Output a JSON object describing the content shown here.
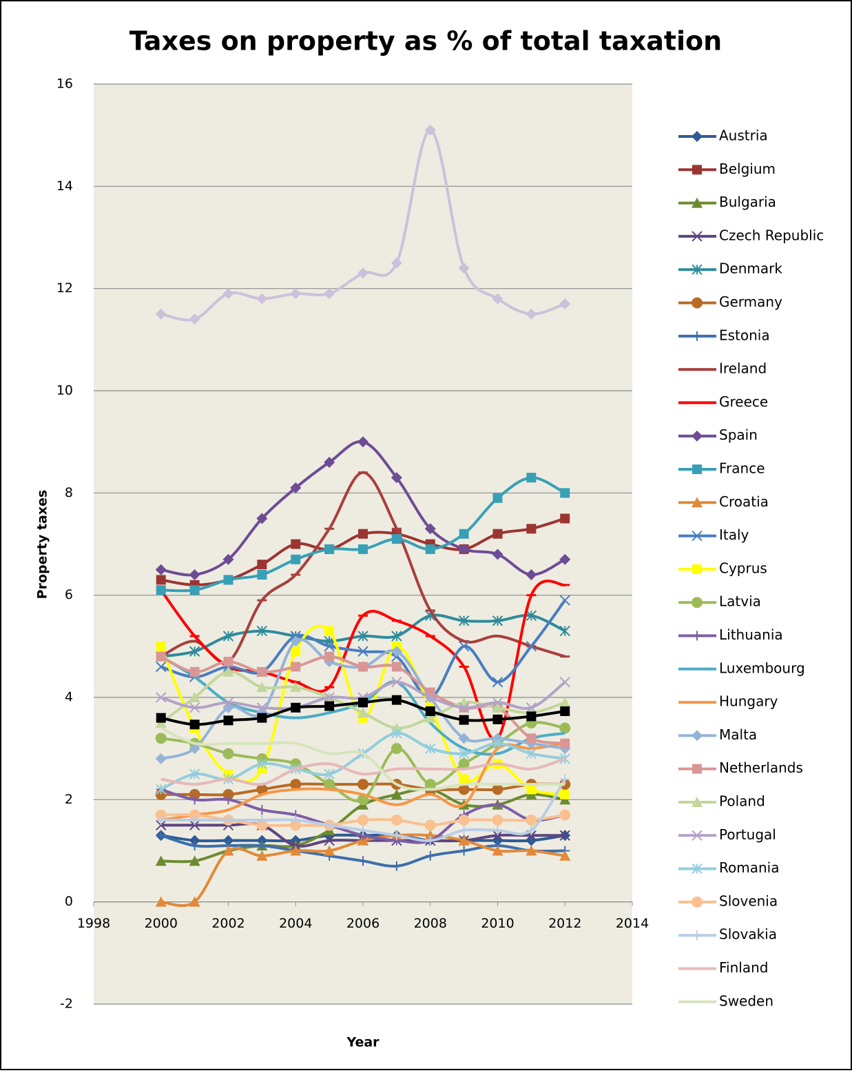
{
  "chart_data": {
    "type": "line",
    "title": "Taxes on property as % of total taxation",
    "x_label": "Year",
    "y_label": "Property taxes",
    "xlim": [
      1998,
      2014
    ],
    "xticks": [
      1998,
      2000,
      2002,
      2004,
      2006,
      2008,
      2010,
      2012,
      2014
    ],
    "ylim": [
      -2,
      16
    ],
    "yticks": [
      -2,
      0,
      2,
      4,
      6,
      8,
      10,
      12,
      14,
      16
    ],
    "grid": true,
    "smooth": true,
    "legend": "right",
    "x": [
      2000,
      2001,
      2002,
      2003,
      2004,
      2005,
      2006,
      2007,
      2008,
      2009,
      2010,
      2011,
      2012
    ],
    "series": [
      {
        "name": "Austria",
        "color": "#2e5b95",
        "marker": "diamond",
        "values": [
          1.3,
          1.2,
          1.2,
          1.2,
          1.2,
          1.3,
          1.3,
          1.3,
          1.2,
          1.2,
          1.2,
          1.2,
          1.3
        ]
      },
      {
        "name": "Belgium",
        "color": "#9c3532",
        "marker": "square",
        "values": [
          6.3,
          6.2,
          6.3,
          6.6,
          7.0,
          6.9,
          7.2,
          7.2,
          7.0,
          6.9,
          7.2,
          7.3,
          7.5
        ]
      },
      {
        "name": "Bulgaria",
        "color": "#6b8b30",
        "marker": "triangle",
        "values": [
          0.8,
          0.8,
          1.0,
          1.1,
          1.1,
          1.4,
          1.9,
          2.1,
          2.2,
          1.9,
          1.9,
          2.1,
          2.0
        ]
      },
      {
        "name": "Czech Republic",
        "color": "#5c447f",
        "marker": "x",
        "values": [
          1.5,
          1.5,
          1.5,
          1.5,
          1.1,
          1.2,
          1.2,
          1.2,
          1.2,
          1.2,
          1.3,
          1.3,
          1.3
        ]
      },
      {
        "name": "Denmark",
        "color": "#2e8b9c",
        "marker": "asterisk",
        "values": [
          4.8,
          4.9,
          5.2,
          5.3,
          5.2,
          5.1,
          5.2,
          5.2,
          5.6,
          5.5,
          5.5,
          5.6,
          5.3
        ]
      },
      {
        "name": "Germany",
        "color": "#b86b25",
        "marker": "circle",
        "values": [
          2.1,
          2.1,
          2.1,
          2.2,
          2.3,
          2.3,
          2.3,
          2.3,
          2.2,
          2.2,
          2.2,
          2.3,
          2.3
        ]
      },
      {
        "name": "Estonia",
        "color": "#3d6eab",
        "marker": "plus",
        "values": [
          1.3,
          1.1,
          1.1,
          1.1,
          1.0,
          0.9,
          0.8,
          0.7,
          0.9,
          1.0,
          1.1,
          1.0,
          1.0
        ]
      },
      {
        "name": "Ireland",
        "color": "#a8403d",
        "marker": "dash",
        "values": [
          4.8,
          5.1,
          4.7,
          5.9,
          6.4,
          7.3,
          8.4,
          7.3,
          5.7,
          5.1,
          5.2,
          5.0,
          4.8
        ]
      },
      {
        "name": "Greece",
        "color": "#ff0000",
        "marker": "dash",
        "values": [
          6.1,
          5.2,
          4.6,
          4.5,
          4.3,
          4.2,
          5.6,
          5.5,
          5.2,
          4.6,
          3.2,
          6.0,
          6.2
        ]
      },
      {
        "name": "Spain",
        "color": "#6d4c95",
        "marker": "diamond",
        "values": [
          6.5,
          6.4,
          6.7,
          7.5,
          8.1,
          8.6,
          9.0,
          8.3,
          7.3,
          6.9,
          6.8,
          6.4,
          6.7
        ]
      },
      {
        "name": "France",
        "color": "#38a0b6",
        "marker": "square",
        "values": [
          6.1,
          6.1,
          6.3,
          6.4,
          6.7,
          6.9,
          6.9,
          7.1,
          6.9,
          7.2,
          7.9,
          8.3,
          8.0
        ]
      },
      {
        "name": "Croatia",
        "color": "#e08a3a",
        "marker": "triangle",
        "values": [
          0,
          0,
          1.0,
          0.9,
          1.0,
          1.0,
          1.2,
          1.3,
          1.3,
          1.2,
          1.0,
          1.0,
          0.9
        ]
      },
      {
        "name": "Italy",
        "color": "#4a7dc0",
        "marker": "x",
        "values": [
          4.6,
          4.4,
          4.6,
          4.5,
          5.2,
          5.0,
          4.9,
          4.8,
          4.0,
          5.0,
          4.3,
          5.0,
          5.9
        ]
      },
      {
        "name": "Cyprus",
        "color": "#ffff00",
        "marker": "square",
        "values": [
          5.0,
          3.4,
          2.5,
          2.6,
          4.9,
          5.3,
          3.6,
          5.0,
          3.8,
          2.4,
          2.7,
          2.2,
          2.1
        ]
      },
      {
        "name": "Latvia",
        "color": "#9bbb59",
        "marker": "circle",
        "values": [
          3.2,
          3.1,
          2.9,
          2.8,
          2.7,
          2.3,
          2.0,
          3.0,
          2.3,
          2.7,
          3.1,
          3.5,
          3.4
        ]
      },
      {
        "name": "Lithuania",
        "color": "#7e5ea6",
        "marker": "plus",
        "values": [
          2.2,
          2.0,
          2.0,
          1.8,
          1.7,
          1.5,
          1.3,
          1.2,
          1.2,
          1.7,
          1.9,
          1.6,
          1.7
        ]
      },
      {
        "name": "Luxembourg",
        "color": "#4bacc6",
        "values": [
          4.8,
          4.4,
          3.9,
          3.7,
          3.6,
          3.7,
          3.9,
          4.3,
          3.5,
          3.0,
          2.9,
          3.2,
          3.3
        ]
      },
      {
        "name": "Hungary",
        "color": "#f79646",
        "values": [
          1.6,
          1.7,
          1.8,
          2.1,
          2.2,
          2.2,
          2.1,
          1.9,
          2.1,
          1.9,
          3.0,
          3.0,
          3.1
        ]
      },
      {
        "name": "Malta",
        "color": "#95b3d7",
        "marker": "diamond",
        "values": [
          2.8,
          3.0,
          3.8,
          3.7,
          5.1,
          4.7,
          4.6,
          4.9,
          4.0,
          3.2,
          3.2,
          3.1,
          3.0
        ]
      },
      {
        "name": "Netherlands",
        "color": "#d99694",
        "marker": "square",
        "values": [
          4.8,
          4.5,
          4.7,
          4.5,
          4.6,
          4.8,
          4.6,
          4.6,
          4.1,
          3.8,
          3.8,
          3.2,
          3.1
        ]
      },
      {
        "name": "Poland",
        "color": "#c3d69b",
        "marker": "triangle",
        "values": [
          3.5,
          4.0,
          4.5,
          4.2,
          4.2,
          4.0,
          3.7,
          3.4,
          3.6,
          3.9,
          3.8,
          3.7,
          3.9
        ]
      },
      {
        "name": "Portugal",
        "color": "#b3a2c7",
        "marker": "x",
        "values": [
          4.0,
          3.8,
          3.9,
          3.8,
          3.8,
          4.0,
          4.0,
          4.3,
          4.0,
          3.8,
          3.9,
          3.8,
          4.3
        ]
      },
      {
        "name": "Romania",
        "color": "#93cddd",
        "marker": "asterisk",
        "values": [
          2.2,
          2.5,
          2.4,
          2.7,
          2.6,
          2.5,
          2.9,
          3.3,
          3.0,
          2.9,
          3.1,
          2.9,
          2.8
        ]
      },
      {
        "name": "Slovenia",
        "color": "#fac090",
        "marker": "circle",
        "values": [
          1.7,
          1.7,
          1.6,
          1.5,
          1.5,
          1.5,
          1.6,
          1.6,
          1.5,
          1.6,
          1.6,
          1.6,
          1.7
        ]
      },
      {
        "name": "Slovakia",
        "color": "#b9cde5",
        "marker": "plus",
        "values": [
          1.6,
          1.6,
          1.6,
          1.6,
          1.6,
          1.5,
          1.4,
          1.3,
          1.2,
          1.4,
          1.4,
          1.4,
          2.4
        ]
      },
      {
        "name": "Finland",
        "color": "#e6b9b8",
        "values": [
          2.4,
          2.3,
          2.4,
          2.3,
          2.6,
          2.7,
          2.5,
          2.6,
          2.6,
          2.6,
          2.7,
          2.6,
          2.8
        ]
      },
      {
        "name": "Sweden",
        "color": "#d7e4bd",
        "values": [
          3.4,
          3.1,
          3.1,
          3.1,
          3.1,
          2.9,
          2.9,
          2.3,
          2.2,
          2.3,
          2.3,
          2.3,
          2.3
        ]
      },
      {
        "color": "#ccc1da",
        "marker": "diamond",
        "values": [
          11.5,
          11.4,
          11.9,
          11.8,
          11.9,
          11.9,
          12.3,
          12.5,
          15.1,
          12.4,
          11.8,
          11.5,
          11.7
        ]
      },
      {
        "color": "#000000",
        "marker": "square",
        "values": [
          3.6,
          3.47,
          3.55,
          3.6,
          3.8,
          3.83,
          3.9,
          3.95,
          3.73,
          3.56,
          3.57,
          3.63,
          3.73
        ]
      }
    ]
  }
}
